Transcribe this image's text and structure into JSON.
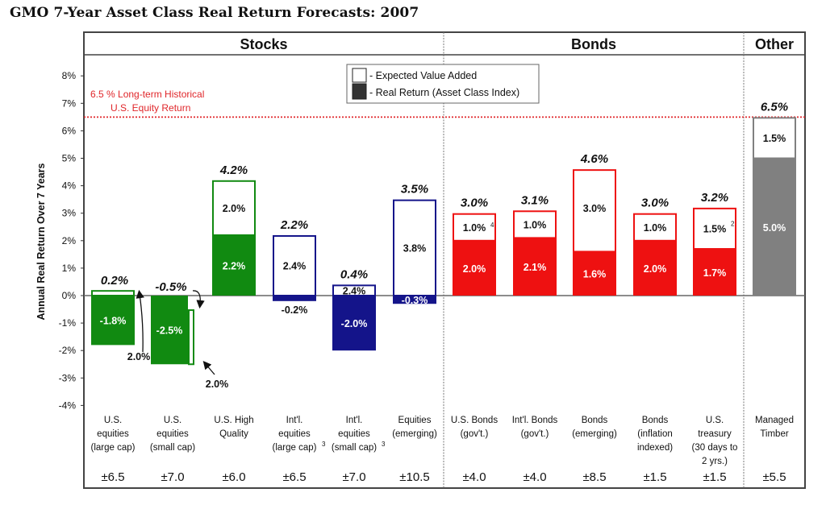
{
  "title": "GMO 7-Year Asset Class Real Return Forecasts: 2007",
  "chart_data": {
    "type": "bar",
    "subtype": "stacked",
    "title": "GMO 7-Year Asset Class Real Return Forecasts: 2007",
    "xlabel": "",
    "ylabel": "Annual Real Return Over 7 Years",
    "ylim": [
      -4,
      8
    ],
    "yticks": [
      8,
      7,
      6,
      5,
      4,
      3,
      2,
      1,
      0,
      -1,
      -2,
      -3,
      -4
    ],
    "ytick_labels": [
      "8%",
      "7%",
      "6%",
      "5%",
      "4%",
      "3%",
      "2%",
      "1%",
      "0%",
      "-1%",
      "-2%",
      "-3%",
      "-4%"
    ],
    "grid": false,
    "legend": {
      "placement": "top-center",
      "entries": [
        {
          "label": "- Expected Value Added",
          "swatch": "white"
        },
        {
          "label": "- Real Return (Asset Class Index)",
          "swatch": "#333333"
        }
      ]
    },
    "reference_line": {
      "value": 6.5,
      "label_line1": "6.5 % Long-term Historical",
      "label_line2": "U.S. Equity Return",
      "color": "#e0262a"
    },
    "sections": [
      {
        "name": "Stocks",
        "count": 6
      },
      {
        "name": "Bonds",
        "count": 5
      },
      {
        "name": "Other",
        "count": 1
      }
    ],
    "series": [
      {
        "name": "Real Return (Asset Class Index)",
        "values": [
          -1.8,
          -2.5,
          2.2,
          -0.2,
          -2.0,
          -0.3,
          2.0,
          2.1,
          1.6,
          2.0,
          1.7,
          5.0
        ]
      },
      {
        "name": "Expected Value Added",
        "values": [
          2.0,
          2.0,
          2.0,
          2.4,
          2.4,
          3.8,
          1.0,
          1.0,
          3.0,
          1.0,
          1.5,
          1.5
        ]
      }
    ],
    "categories": [
      {
        "lines": [
          "U.S.",
          "equities",
          "(large cap)"
        ],
        "sup": "",
        "error": "±6.5",
        "color": "#118a11",
        "total": "0.2%",
        "base_label": "-1.8%",
        "value_label": "2.0%",
        "value_sup": ""
      },
      {
        "lines": [
          "U.S.",
          "equities",
          "(small cap)"
        ],
        "sup": "",
        "error": "±7.0",
        "color": "#118a11",
        "total": "-0.5%",
        "base_label": "-2.5%",
        "value_label": "2.0%",
        "value_sup": ""
      },
      {
        "lines": [
          "U.S. High",
          "Quality"
        ],
        "sup": "",
        "error": "±6.0",
        "color": "#118a11",
        "total": "4.2%",
        "base_label": "2.2%",
        "value_label": "2.0%",
        "value_sup": ""
      },
      {
        "lines": [
          "Int'l.",
          "equities",
          "(large cap)"
        ],
        "sup": "3",
        "error": "±6.5",
        "color": "#14148a",
        "total": "2.2%",
        "base_label": "-0.2%",
        "value_label": "2.4%",
        "value_sup": ""
      },
      {
        "lines": [
          "Int'l.",
          "equities",
          "(small cap)"
        ],
        "sup": "3",
        "error": "±7.0",
        "color": "#14148a",
        "total": "0.4%",
        "base_label": "-2.0%",
        "value_label": "2.4%",
        "value_sup": ""
      },
      {
        "lines": [
          "Equities",
          "(emerging)"
        ],
        "sup": "",
        "error": "±10.5",
        "color": "#14148a",
        "total": "3.5%",
        "base_label": "-0.3%",
        "value_label": "3.8%",
        "value_sup": ""
      },
      {
        "lines": [
          "U.S. Bonds",
          "(gov't.)"
        ],
        "sup": "",
        "error": "±4.0",
        "color": "#ee1111",
        "total": "3.0%",
        "base_label": "2.0%",
        "value_label": "1.0%",
        "value_sup": "4"
      },
      {
        "lines": [
          "Int'l. Bonds",
          "(gov't.)"
        ],
        "sup": "",
        "error": "±4.0",
        "color": "#ee1111",
        "total": "3.1%",
        "base_label": "2.1%",
        "value_label": "1.0%",
        "value_sup": ""
      },
      {
        "lines": [
          "Bonds",
          "(emerging)"
        ],
        "sup": "",
        "error": "±8.5",
        "color": "#ee1111",
        "total": "4.6%",
        "base_label": "1.6%",
        "value_label": "3.0%",
        "value_sup": ""
      },
      {
        "lines": [
          "Bonds",
          "(inflation",
          "indexed)"
        ],
        "sup": "",
        "error": "±1.5",
        "color": "#ee1111",
        "total": "3.0%",
        "base_label": "2.0%",
        "value_label": "1.0%",
        "value_sup": ""
      },
      {
        "lines": [
          "U.S.",
          "treasury",
          "(30 days to",
          "2 yrs.)"
        ],
        "sup": "",
        "error": "±1.5",
        "color": "#ee1111",
        "total": "3.2%",
        "base_label": "1.7%",
        "value_label": "1.5%",
        "value_sup": "2"
      },
      {
        "lines": [
          "Managed",
          "Timber"
        ],
        "sup": "",
        "error": "±5.5",
        "color": "#808080",
        "total": "6.5%",
        "base_label": "5.0%",
        "value_label": "1.5%",
        "value_sup": ""
      }
    ]
  }
}
